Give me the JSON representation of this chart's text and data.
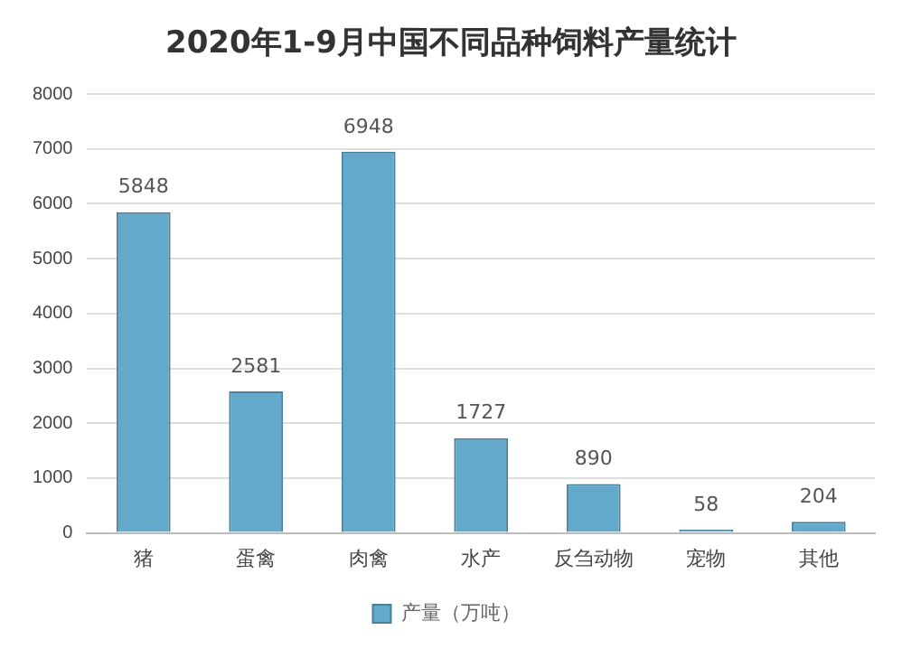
{
  "chart_data": {
    "type": "bar",
    "title": "2020年1-9月中国不同品种饲料产量统计",
    "categories": [
      "猪",
      "蛋禽",
      "肉禽",
      "水产",
      "反刍动物",
      "宠物",
      "其他"
    ],
    "series": [
      {
        "name": "产量（万吨）",
        "color": "#62a9cc",
        "values": [
          5848,
          2581,
          6948,
          1727,
          890,
          58,
          204
        ]
      }
    ],
    "ylim": [
      0,
      8000
    ],
    "yticks": [
      0,
      1000,
      2000,
      3000,
      4000,
      5000,
      6000,
      7000,
      8000
    ],
    "grid": "y",
    "legend": "bottom",
    "data_labels": true
  }
}
